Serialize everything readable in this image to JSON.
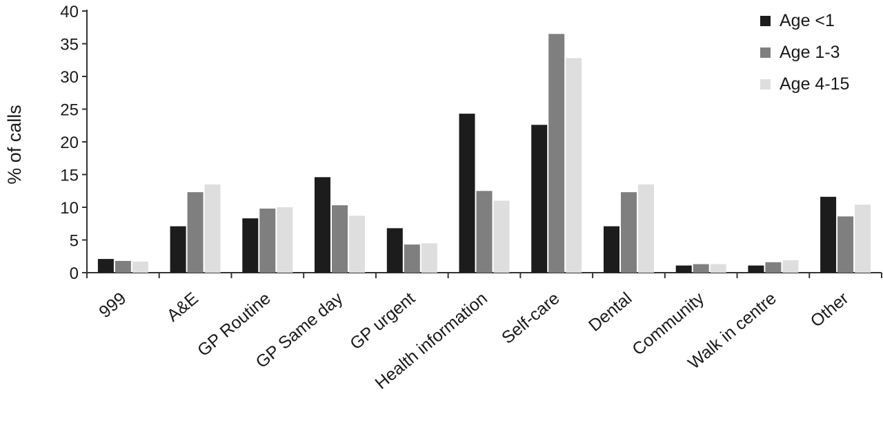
{
  "chart_data": {
    "type": "bar",
    "categories": [
      "999",
      "A&E",
      "GP Routine",
      "GP Same day",
      "GP urgent",
      "Health information",
      "Self-care",
      "Dental",
      "Community",
      "Walk in centre",
      "Other"
    ],
    "series": [
      {
        "name": "Age <1",
        "color": "#1c1c1c",
        "values": [
          2.1,
          7.1,
          8.3,
          14.6,
          6.8,
          24.3,
          22.6,
          7.1,
          1.1,
          1.1,
          11.6
        ]
      },
      {
        "name": "Age 1-3",
        "color": "#7f7f7f",
        "values": [
          1.8,
          12.3,
          9.8,
          10.3,
          4.3,
          12.5,
          36.5,
          12.3,
          1.3,
          1.6,
          8.6
        ]
      },
      {
        "name": "Age 4-15",
        "color": "#dedede",
        "values": [
          1.7,
          13.5,
          10.0,
          8.7,
          4.5,
          11.0,
          32.8,
          13.5,
          1.3,
          1.9,
          10.4
        ]
      }
    ],
    "ylabel": "% of calls",
    "xlabel": "",
    "ylim": [
      0,
      40
    ],
    "yticks": [
      0,
      5,
      10,
      15,
      20,
      25,
      30,
      35,
      40
    ],
    "grid": false,
    "legend_position": "top-right"
  }
}
